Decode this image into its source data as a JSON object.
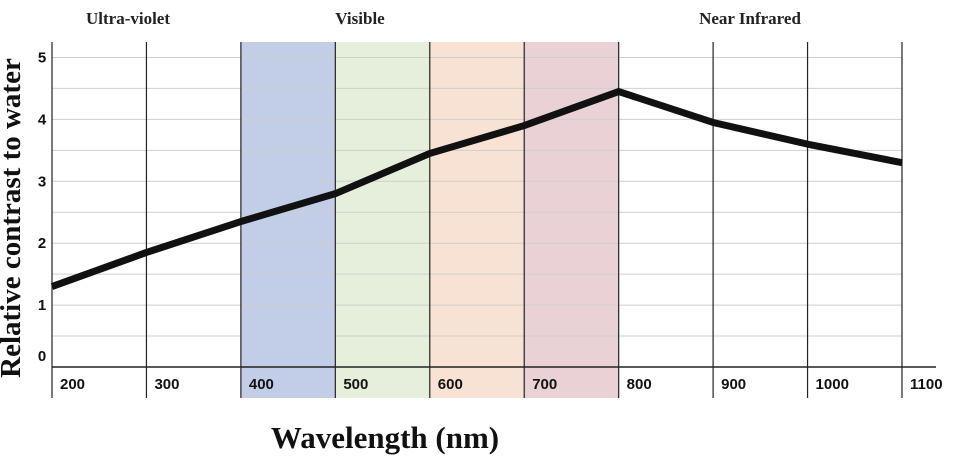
{
  "chart_data": {
    "type": "line",
    "xlabel": "Wavelength  (nm)",
    "ylabel": "Relative contrast to water",
    "xlim": [
      150,
      1100
    ],
    "ylim": [
      0,
      5.25
    ],
    "x_ticks": [
      "200",
      "300",
      "400",
      "500",
      "600",
      "700",
      "800",
      "900",
      "1000",
      "1100"
    ],
    "y_ticks": [
      "0",
      "1",
      "2",
      "3",
      "4",
      "5"
    ],
    "grid": true,
    "regions": [
      {
        "label": "Ultra-violet"
      },
      {
        "label": "Visible"
      },
      {
        "label": "Near Infrared"
      }
    ],
    "bands": [
      {
        "from": 350,
        "to": 450,
        "color": "#c2cde8"
      },
      {
        "from": 450,
        "to": 550,
        "color": "#e6efdc"
      },
      {
        "from": 550,
        "to": 650,
        "color": "#f8e2d4"
      },
      {
        "from": 650,
        "to": 750,
        "color": "#e9d1d6"
      }
    ],
    "series": [
      {
        "x": [
          150,
          250,
          350,
          450,
          550,
          650,
          750,
          850,
          950,
          1050
        ],
        "y": [
          1.3,
          1.85,
          2.35,
          2.8,
          3.45,
          3.9,
          4.45,
          3.95,
          3.6,
          3.3
        ]
      }
    ],
    "line_color": "#111111"
  }
}
